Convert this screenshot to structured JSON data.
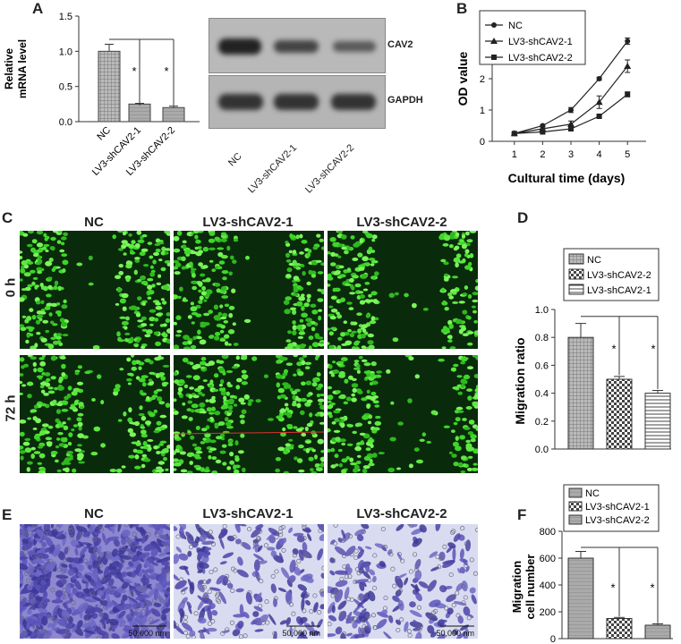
{
  "panels": {
    "A": "A",
    "B": "B",
    "C": "C",
    "D": "D",
    "E": "E",
    "F": "F"
  },
  "chart_data": [
    {
      "id": "A",
      "type": "bar",
      "ylabel_line1": "Relative",
      "ylabel_line2": "mRNA level",
      "categories": [
        "NC",
        "LV3-shCAV2-1",
        "LV3-shCAV2-2"
      ],
      "values": [
        1.0,
        0.25,
        0.2
      ],
      "errors": [
        0.1,
        0.01,
        0.02
      ],
      "ylim": [
        0,
        1.5
      ],
      "yticks": [
        "0.0",
        "0.5",
        "1.0",
        "1.5"
      ],
      "significance": [
        "*",
        "*"
      ]
    },
    {
      "id": "B",
      "type": "line",
      "xlabel": "Cultural time (days)",
      "ylabel": "OD value",
      "x": [
        1,
        2,
        3,
        4,
        5
      ],
      "xticks": [
        "1",
        "2",
        "3",
        "4",
        "5"
      ],
      "yticks": [
        "0",
        "1",
        "2",
        "3",
        "4"
      ],
      "ylim": [
        0,
        4
      ],
      "legend": "top-left",
      "series": [
        {
          "name": "NC",
          "values": [
            0.25,
            0.5,
            1.0,
            2.0,
            3.2
          ],
          "errors": [
            0.02,
            0.03,
            0.08,
            0.05,
            0.1
          ]
        },
        {
          "name": "LV3-shCAV2-1",
          "values": [
            0.25,
            0.4,
            0.55,
            1.25,
            2.4
          ],
          "errors": [
            0.02,
            0.03,
            0.1,
            0.2,
            0.2
          ]
        },
        {
          "name": "LV3-shCAV2-2",
          "values": [
            0.25,
            0.3,
            0.4,
            0.8,
            1.5
          ],
          "errors": [
            0.02,
            0.03,
            0.05,
            0.05,
            0.08
          ]
        }
      ]
    },
    {
      "id": "D",
      "type": "bar",
      "ylabel": "Migration ratio",
      "legend": [
        "NC",
        "LV3-shCAV2-2",
        "LV3-shCAV2-1"
      ],
      "values": [
        0.8,
        0.5,
        0.4
      ],
      "errors": [
        0.1,
        0.02,
        0.02
      ],
      "ylim": [
        0,
        1.0
      ],
      "yticks": [
        "0.0",
        "0.2",
        "0.4",
        "0.6",
        "0.8",
        "1.0"
      ],
      "significance": [
        "*",
        "*"
      ]
    },
    {
      "id": "F",
      "type": "bar",
      "ylabel_line1": "Migration",
      "ylabel_line2": "cell number",
      "legend": [
        "NC",
        "LV3-shCAV2-1",
        "LV3-shCAV2-2"
      ],
      "values": [
        600,
        150,
        100
      ],
      "errors": [
        50,
        8,
        10
      ],
      "ylim": [
        0,
        800
      ],
      "yticks": [
        "0",
        "200",
        "400",
        "600",
        "800"
      ],
      "significance": [
        "*",
        "*"
      ]
    }
  ],
  "blot": {
    "bands": [
      "CAV2",
      "GAPDH"
    ],
    "lanes": [
      "NC",
      "LV3-shCAV2-1",
      "LV3-shCAV2-2"
    ]
  },
  "wound": {
    "columns": [
      "NC",
      "LV3-shCAV2-1",
      "LV3-shCAV2-2"
    ],
    "rows": [
      "0 h",
      "72 h"
    ]
  },
  "transwell": {
    "columns": [
      "NC",
      "LV3-shCAV2-1",
      "LV3-shCAV2-2"
    ],
    "scale": "50,000 nm"
  },
  "colors": {
    "cell_green": "#3fd62a",
    "wound_dark": "#0a2a0c",
    "crystal_violet": "#5c55b8",
    "transwell_bg": "#d9dcf0"
  }
}
